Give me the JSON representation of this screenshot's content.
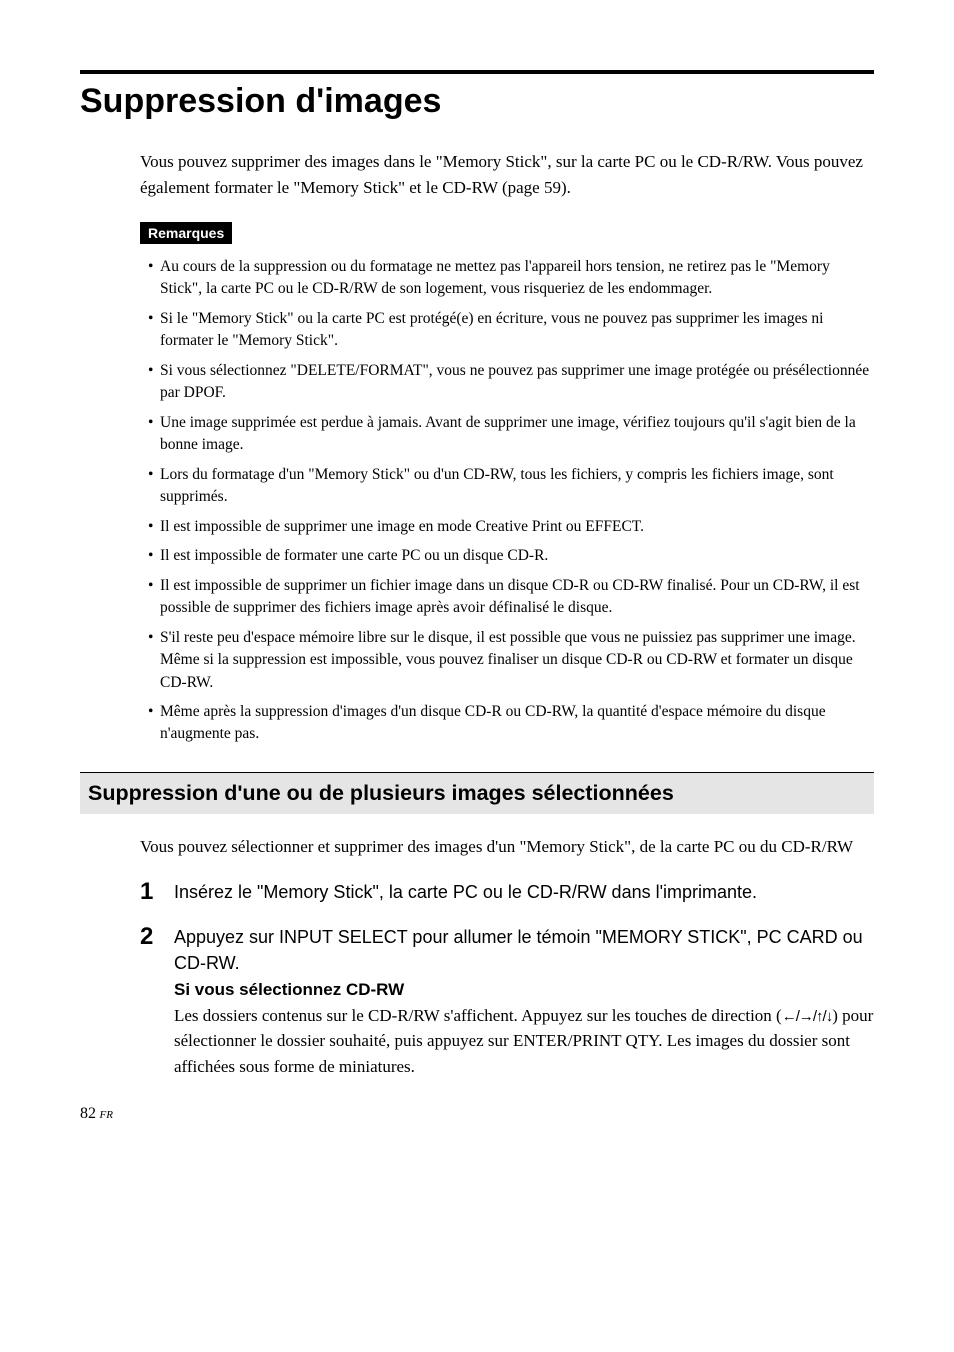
{
  "title": "Suppression d'images",
  "intro": "Vous pouvez supprimer des images dans le \"Memory Stick\", sur la carte PC ou le CD-R/RW. Vous pouvez également formater le \"Memory Stick\" et le CD-RW (page 59).",
  "remarks_label": "Remarques",
  "remarks": [
    "Au cours de la suppression ou du formatage ne mettez pas l'appareil hors tension, ne retirez pas le \"Memory Stick\", la carte PC ou le CD-R/RW de son logement, vous risqueriez de les endommager.",
    "Si le \"Memory Stick\" ou la carte PC est protégé(e) en écriture, vous ne pouvez pas supprimer les images ni formater le \"Memory Stick\".",
    "Si vous sélectionnez \"DELETE/FORMAT\", vous ne pouvez pas supprimer une image protégée ou présélectionnée par DPOF.",
    "Une image supprimée est perdue à jamais. Avant de supprimer une image, vérifiez toujours qu'il s'agit bien de la bonne image.",
    "Lors du formatage d'un \"Memory Stick\" ou d'un CD-RW, tous les fichiers, y compris les fichiers image, sont supprimés.",
    "Il est impossible de supprimer une image en mode Creative Print ou EFFECT.",
    "Il est impossible de formater une carte PC ou un disque CD-R.",
    "Il est impossible de supprimer un fichier image dans un disque CD-R ou CD-RW finalisé. Pour un CD-RW, il est possible de supprimer des fichiers image après avoir définalisé le disque.",
    "S'il reste peu d'espace mémoire libre sur le disque, il est possible que vous ne puissiez pas supprimer une image. Même si la suppression est impossible, vous pouvez finaliser un disque CD-R ou CD-RW et formater un disque CD-RW.",
    "Même après la suppression d'images d'un disque CD-R ou CD-RW, la quantité d'espace mémoire du disque n'augmente pas."
  ],
  "h2": "Suppression d'une ou de plusieurs images sélectionnées",
  "h2_intro": "Vous pouvez sélectionner et supprimer des images d'un \"Memory Stick\", de la carte PC ou du CD-R/RW",
  "steps": [
    {
      "n": "1",
      "title": "Insérez le \"Memory Stick\", la carte PC ou le CD-R/RW dans l'imprimante."
    },
    {
      "n": "2",
      "title": "Appuyez sur INPUT SELECT pour allumer le témoin \"MEMORY STICK\", PC CARD ou CD-RW.",
      "sub": "Si vous sélectionnez CD-RW",
      "text_a": "Les dossiers contenus sur le CD-R/RW s'affichent. Appuyez sur les touches de direction (",
      "arrows": "←/→/↑/↓",
      "text_b": ") pour sélectionner le dossier souhaité, puis appuyez sur ENTER/PRINT QTY. Les images du dossier sont affichées sous forme de miniatures."
    }
  ],
  "page_num": "82",
  "page_lang": "FR"
}
